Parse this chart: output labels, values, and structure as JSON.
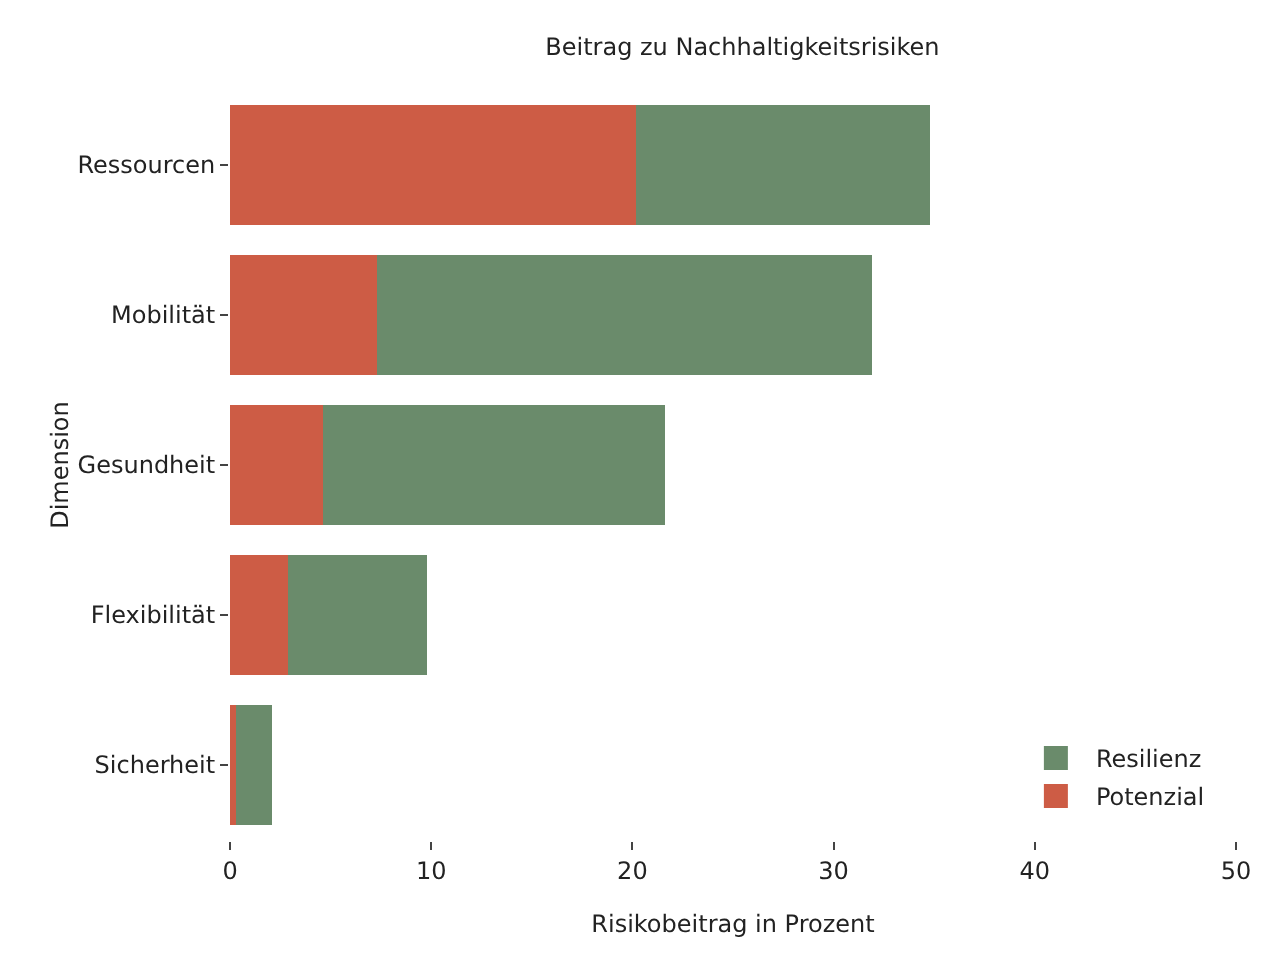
{
  "chart_data": {
    "type": "bar",
    "orientation": "horizontal",
    "stacked": true,
    "title": "Beitrag zu Nachhaltigkeitsrisiken",
    "xlabel": "Risikobeitrag in Prozent",
    "ylabel": "Dimension",
    "categories": [
      "Ressourcen",
      "Mobilität",
      "Gesundheit",
      "Flexibilität",
      "Sicherheit"
    ],
    "series": [
      {
        "name": "Potenzial",
        "color": "#cd5c45",
        "values": [
          20.2,
          7.3,
          4.6,
          2.9,
          0.3
        ]
      },
      {
        "name": "Resilienz",
        "color": "#6a8b6b",
        "values": [
          14.6,
          24.6,
          17.0,
          6.9,
          1.8
        ]
      }
    ],
    "xlim": [
      0,
      50
    ],
    "xticks": [
      0,
      10,
      20,
      30,
      40,
      50
    ],
    "grid": false,
    "legend": "bottom right"
  }
}
